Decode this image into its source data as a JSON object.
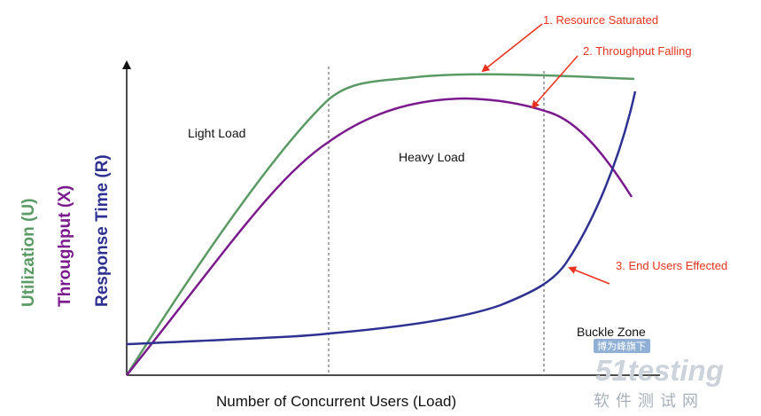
{
  "y_labels": {
    "utilization": "Utilization (U)",
    "throughput": "Throughput (X)",
    "response": "Response Time (R)"
  },
  "x_label": "Number of  Concurrent Users (Load)",
  "regions": {
    "light": "Light Load",
    "heavy": "Heavy Load",
    "buckle": "Buckle Zone"
  },
  "annotations": {
    "resource": "1. Resource Saturated",
    "throughput": "2. Throughput Falling",
    "users": "3. End Users Effected"
  },
  "watermark": {
    "cn_top": "博为峰旗下",
    "brand": "51testing",
    "cn_bottom": "软件测试网"
  },
  "colors": {
    "utilization": "#5a9a64",
    "throughput": "#7a1a8c",
    "response": "#2e3191",
    "annotation": "#e8321e",
    "axis": "#111111"
  }
}
